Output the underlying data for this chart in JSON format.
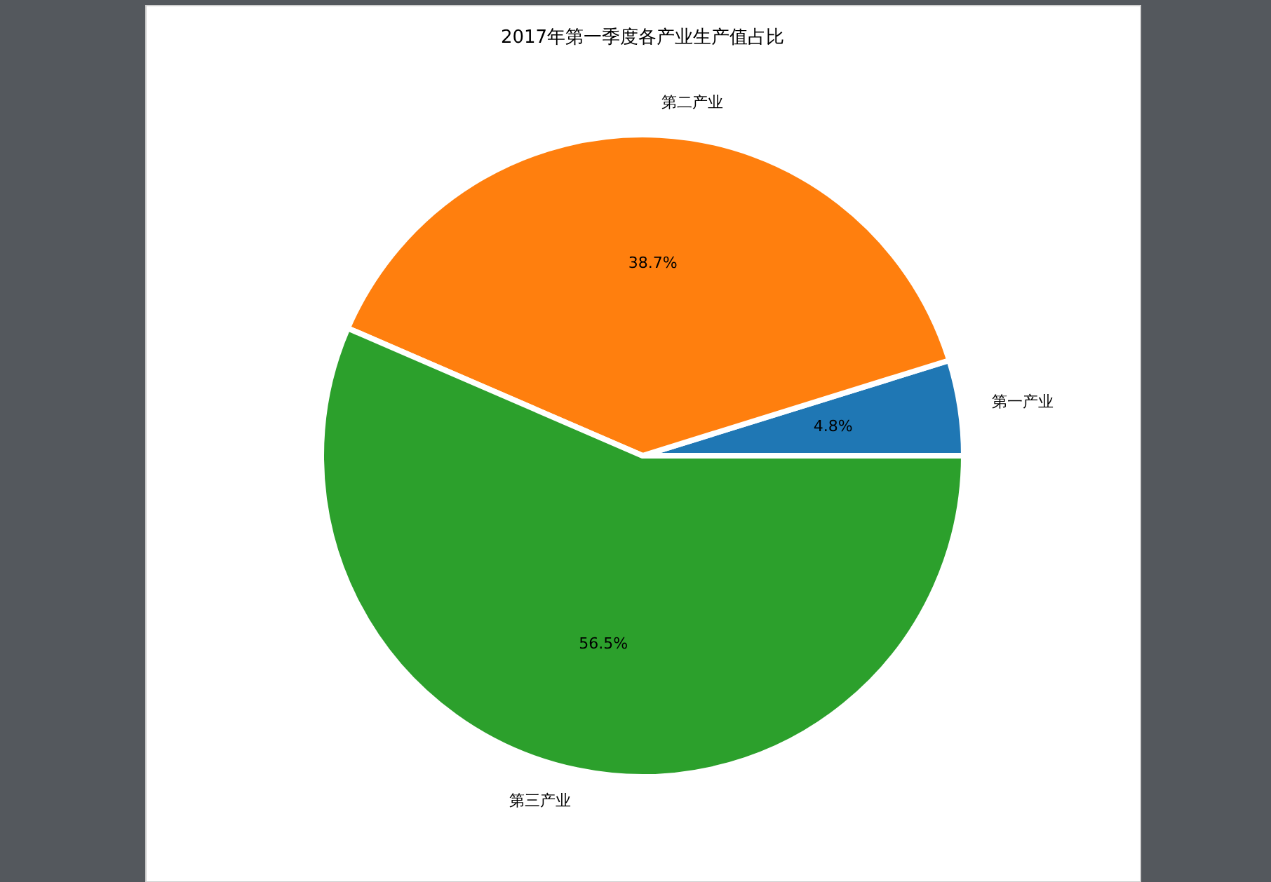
{
  "chart_data": {
    "type": "pie",
    "title": "2017年第一季度各产业生产值占比",
    "categories": [
      "第一产业",
      "第二产业",
      "第三产业"
    ],
    "values": [
      4.8,
      38.7,
      56.5
    ],
    "colors": [
      "#1f77b4",
      "#ff7f0e",
      "#2ca02c"
    ],
    "value_labels": [
      "4.8%",
      "38.7%",
      "56.5%"
    ]
  }
}
